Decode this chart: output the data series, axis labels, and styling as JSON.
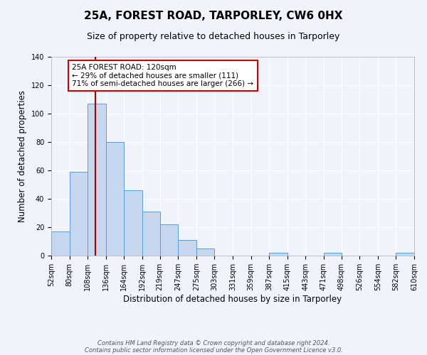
{
  "title": "25A, FOREST ROAD, TARPORLEY, CW6 0HX",
  "subtitle": "Size of property relative to detached houses in Tarporley",
  "xlabel": "Distribution of detached houses by size in Tarporley",
  "ylabel": "Number of detached properties",
  "bar_color": "#c5d8f0",
  "bar_edge_color": "#5b9bd5",
  "bg_color": "#f0f4fa",
  "grid_color": "#ffffff",
  "bins": [
    52,
    80,
    108,
    136,
    164,
    192,
    219,
    247,
    275,
    303,
    331,
    359,
    387,
    415,
    443,
    471,
    498,
    526,
    554,
    582,
    610
  ],
  "counts": [
    17,
    59,
    107,
    80,
    46,
    31,
    22,
    11,
    5,
    0,
    0,
    0,
    2,
    0,
    0,
    2,
    0,
    0,
    0,
    2
  ],
  "vline_x": 120,
  "vline_color": "#aa0000",
  "annotation_text": "25A FOREST ROAD: 120sqm\n← 29% of detached houses are smaller (111)\n71% of semi-detached houses are larger (266) →",
  "annotation_box_color": "#ffffff",
  "annotation_box_edge_color": "#cc0000",
  "ylim": [
    0,
    140
  ],
  "yticks": [
    0,
    20,
    40,
    60,
    80,
    100,
    120,
    140
  ],
  "xtick_labels": [
    "52sqm",
    "80sqm",
    "108sqm",
    "136sqm",
    "164sqm",
    "192sqm",
    "219sqm",
    "247sqm",
    "275sqm",
    "303sqm",
    "331sqm",
    "359sqm",
    "387sqm",
    "415sqm",
    "443sqm",
    "471sqm",
    "498sqm",
    "526sqm",
    "554sqm",
    "582sqm",
    "610sqm"
  ],
  "footnote1": "Contains HM Land Registry data © Crown copyright and database right 2024.",
  "footnote2": "Contains public sector information licensed under the Open Government Licence v3.0.",
  "title_fontsize": 11,
  "subtitle_fontsize": 9,
  "label_fontsize": 8.5,
  "tick_fontsize": 7,
  "footnote_fontsize": 6,
  "annot_fontsize": 7.5
}
